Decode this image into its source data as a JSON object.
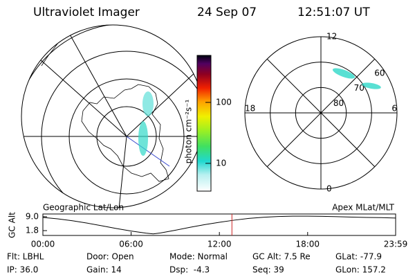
{
  "header": {
    "instrument": "Ultraviolet Imager",
    "date": "24 Sep 07",
    "time": "12:51:07 UT"
  },
  "colorbar": {
    "label": "photon cm⁻²s⁻¹",
    "scale": "log",
    "clim": [
      3.5,
      590
    ],
    "ticks": [
      10,
      100
    ]
  },
  "polar_plot": {
    "mlat_lim": [
      90,
      60
    ],
    "mlat_ticks": [
      80,
      70,
      60
    ],
    "mlt_ticks": [
      0,
      6,
      12,
      18
    ]
  },
  "panel_titles": {
    "left": "Geographic Lat/Lon",
    "right": "Apex MLat/MLT"
  },
  "chart_data": {
    "type": "line",
    "ylabel": "GC Alt",
    "x": [
      0,
      1,
      2,
      3,
      4,
      5,
      6,
      7,
      7.5,
      8,
      9,
      10,
      11,
      12,
      13,
      14,
      15,
      16,
      17,
      18,
      19,
      20,
      21,
      22,
      23,
      23.983
    ],
    "values": [
      8.6,
      7.9,
      6.9,
      5.7,
      4.3,
      2.9,
      1.6,
      0.5,
      0.1,
      0.6,
      2.0,
      3.5,
      4.9,
      6.1,
      7.2,
      8.1,
      8.7,
      9.1,
      9.3,
      9.3,
      9.2,
      9.0,
      8.8,
      8.6,
      8.5,
      8.3
    ],
    "color": "#000000",
    "marker_x": 12.852,
    "marker_color": "#cc2222",
    "xlim": [
      0,
      23.983
    ],
    "ylim": [
      -0.7,
      10.4
    ],
    "xticks": [
      {
        "value": 0,
        "label": "00:00"
      },
      {
        "value": 6,
        "label": "06:00"
      },
      {
        "value": 12,
        "label": "12:00"
      },
      {
        "value": 18,
        "label": "18:00"
      },
      {
        "value": 23.983,
        "label": "23:59"
      }
    ],
    "yticks": [
      {
        "value": 1.8,
        "label": "1.8"
      },
      {
        "value": 9.0,
        "label": "9.0"
      }
    ]
  },
  "footer": [
    [
      "Flt: LBHL",
      "IP: 36.0"
    ],
    [
      "Door: Open",
      "Gain: 14"
    ],
    [
      "Mode: Normal",
      "Dsp:  -4.3"
    ],
    [
      "GC Alt: 7.5 Re",
      "Seq: 39"
    ],
    [
      "GLat: -77.9",
      "GLon: 157.2"
    ]
  ]
}
